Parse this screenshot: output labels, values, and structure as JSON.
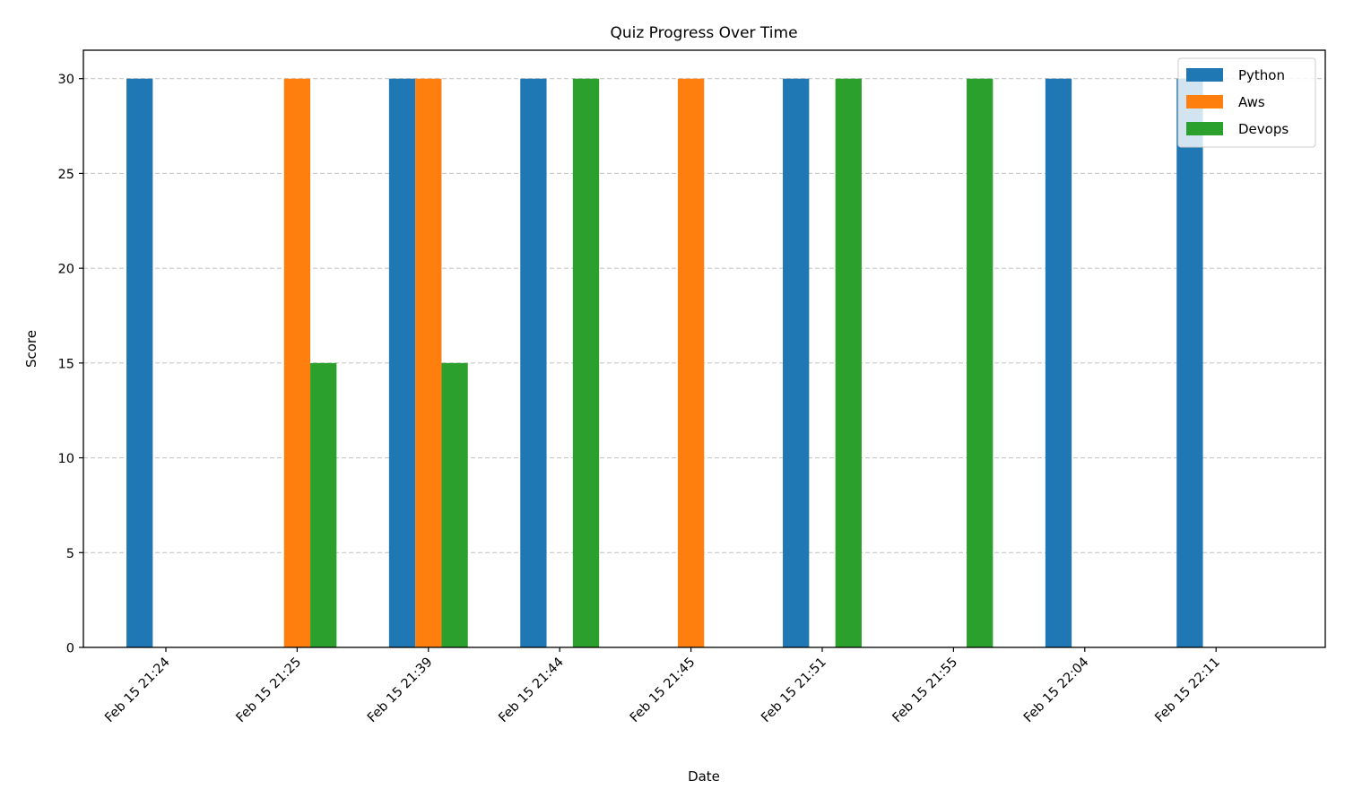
{
  "chart_data": {
    "type": "bar",
    "title": "Quiz Progress Over Time",
    "xlabel": "Date",
    "ylabel": "Score",
    "ylim": [
      0,
      31.5
    ],
    "yticks": [
      0,
      5,
      10,
      15,
      20,
      25,
      30
    ],
    "grid": "y-dashed",
    "legend_position": "top-right",
    "categories": [
      "Feb 15 21:24",
      "Feb 15 21:25",
      "Feb 15 21:39",
      "Feb 15 21:44",
      "Feb 15 21:45",
      "Feb 15 21:51",
      "Feb 15 21:55",
      "Feb 15 22:04",
      "Feb 15 22:11"
    ],
    "series": [
      {
        "name": "Python",
        "color": "#1f77b4",
        "values": [
          30,
          0,
          30,
          30,
          0,
          30,
          0,
          30,
          30
        ]
      },
      {
        "name": "Aws",
        "color": "#ff7f0e",
        "values": [
          0,
          30,
          30,
          0,
          30,
          0,
          0,
          0,
          0
        ]
      },
      {
        "name": "Devops",
        "color": "#2ca02c",
        "values": [
          0,
          15,
          15,
          30,
          0,
          30,
          30,
          0,
          0
        ]
      }
    ]
  }
}
